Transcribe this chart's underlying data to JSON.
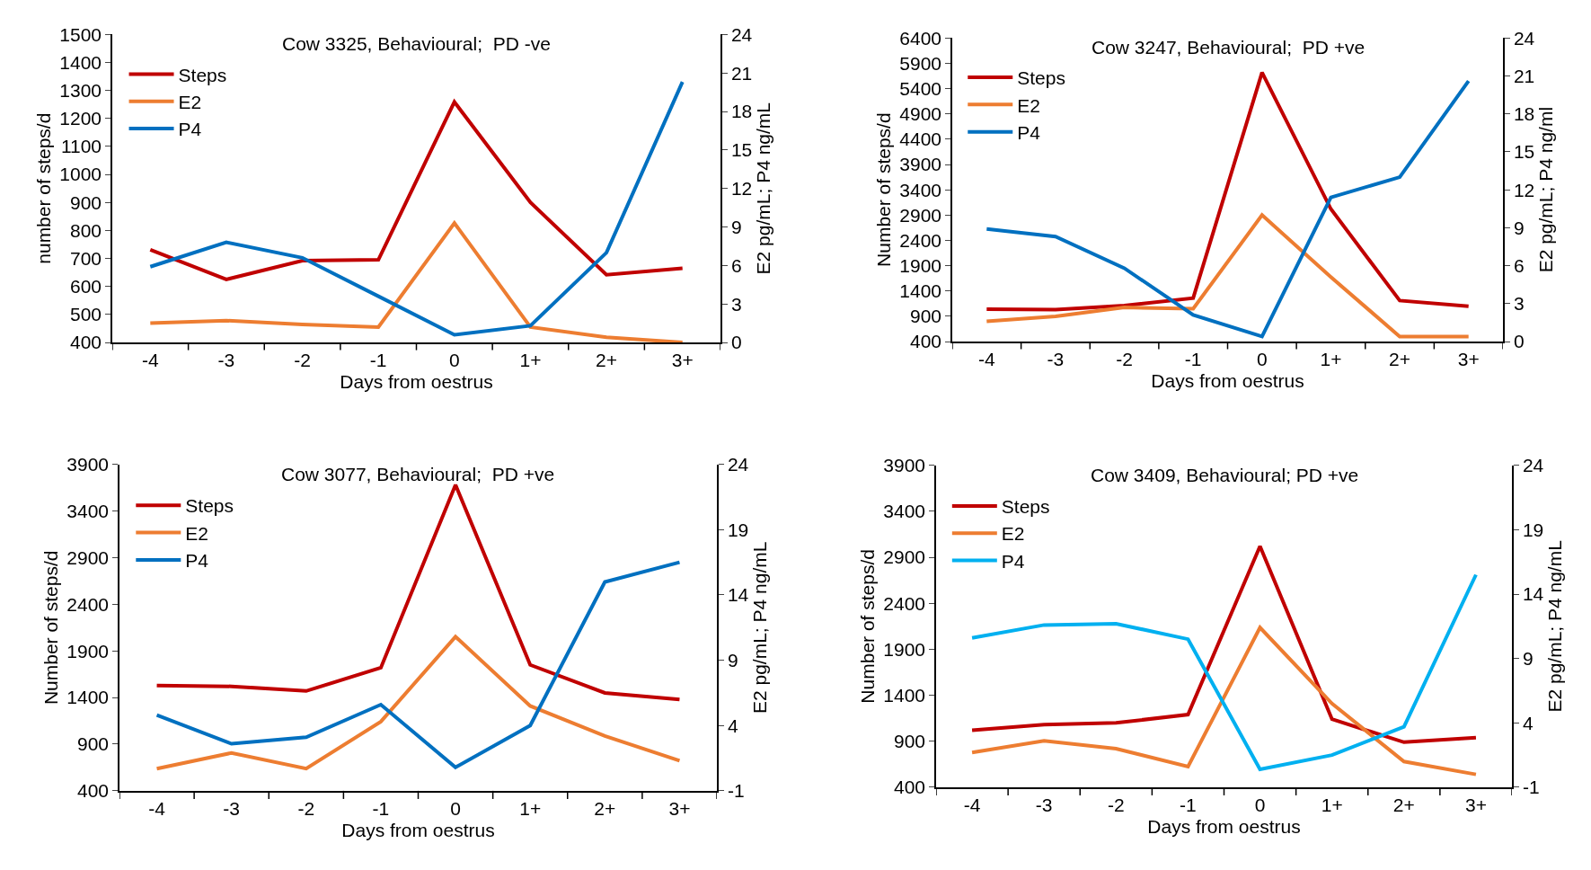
{
  "chart_data": [
    {
      "type": "line",
      "title": "Cow 3325, Behavioural;  PD -ve",
      "xlabel": "Days from oestrus",
      "ylabel": "number of steps/d",
      "y2label": "E2 pg/mL; P4 ng/mL",
      "legend": "top left",
      "categories": [
        "-4",
        "-3",
        "-2",
        "-1",
        "0",
        "1+",
        "2+",
        "3+"
      ],
      "ylim": [
        400,
        1500
      ],
      "yticks": [
        400,
        500,
        600,
        700,
        800,
        900,
        1000,
        1100,
        1200,
        1300,
        1400,
        1500
      ],
      "y2lim": [
        0,
        24
      ],
      "y2ticks": [
        0,
        3,
        6,
        9,
        12,
        15,
        18,
        21,
        24
      ],
      "series": [
        {
          "name": "Steps",
          "color": "#c00000",
          "values": [
            731,
            625,
            692,
            695,
            1259,
            900,
            642,
            665
          ]
        },
        {
          "name": "E2",
          "color": "#ed7d31",
          "axis": "y2",
          "values": [
            1.5,
            1.7,
            1.4,
            1.2,
            9.3,
            1.2,
            0.4,
            0
          ]
        },
        {
          "name": "P4",
          "color": "#0070c0",
          "axis": "y2",
          "values": [
            5.9,
            7.8,
            6.6,
            3.6,
            0.6,
            1.3,
            7.0,
            20.3
          ]
        }
      ]
    },
    {
      "type": "line",
      "title": "Cow 3247, Behavioural;  PD +ve",
      "xlabel": "Days from oestrus",
      "ylabel": "Number of steps/d",
      "y2label": "E2 pg/mL; P4 ng/ml",
      "legend": "top left",
      "categories": [
        "-4",
        "-3",
        "-2",
        "-1",
        "0",
        "1+",
        "2+",
        "3+"
      ],
      "ylim": [
        400,
        6400
      ],
      "yticks": [
        400,
        900,
        1400,
        1900,
        2400,
        2900,
        3400,
        3900,
        4400,
        4900,
        5400,
        5900,
        6400
      ],
      "y2lim": [
        0,
        24
      ],
      "y2ticks": [
        0,
        3,
        6,
        9,
        12,
        15,
        18,
        21,
        24
      ],
      "series": [
        {
          "name": "Steps",
          "color": "#c00000",
          "values": [
            1040,
            1030,
            1110,
            1260,
            5720,
            3020,
            1210,
            1100
          ]
        },
        {
          "name": "E2",
          "color": "#ed7d31",
          "axis": "y2",
          "values": [
            1.6,
            2.0,
            2.7,
            2.6,
            10.0,
            5.1,
            0.4,
            0.4
          ]
        },
        {
          "name": "P4",
          "color": "#0070c0",
          "axis": "y2",
          "values": [
            8.9,
            8.3,
            5.8,
            2.1,
            0.4,
            11.4,
            13.0,
            20.6
          ]
        }
      ]
    },
    {
      "type": "line",
      "title": "Cow 3077, Behavioural;  PD +ve",
      "xlabel": "Days from oestrus",
      "ylabel": "Number of steps/d",
      "y2label": "E2 pg/mL; P4 ng/mL",
      "legend": "top left",
      "categories": [
        "-4",
        "-3",
        "-2",
        "-1",
        "0",
        "1+",
        "2+",
        "3+"
      ],
      "ylim": [
        400,
        3900
      ],
      "yticks": [
        400,
        900,
        1400,
        1900,
        2400,
        2900,
        3400,
        3900
      ],
      "y2lim": [
        -1,
        24
      ],
      "y2ticks": [
        -1,
        4,
        9,
        14,
        19,
        24
      ],
      "series": [
        {
          "name": "Steps",
          "color": "#c00000",
          "values": [
            1530,
            1520,
            1470,
            1720,
            3680,
            1750,
            1450,
            1380
          ]
        },
        {
          "name": "E2",
          "color": "#ed7d31",
          "axis": "y2",
          "values": [
            0.7,
            1.9,
            0.7,
            4.3,
            10.8,
            5.5,
            3.2,
            1.3
          ]
        },
        {
          "name": "P4",
          "color": "#0070c0",
          "axis": "y2",
          "values": [
            4.8,
            2.6,
            3.1,
            5.6,
            0.8,
            4.0,
            15.0,
            16.5
          ]
        }
      ]
    },
    {
      "type": "line",
      "title": "Cow 3409, Behavioural; PD +ve",
      "xlabel": "Days from oestrus",
      "ylabel": "Number of steps/d",
      "y2label": "E2 pg/mL; P4 ng/mL",
      "legend": "top left",
      "categories": [
        "-4",
        "-3",
        "-2",
        "-1",
        "0",
        "1+",
        "2+",
        "3+"
      ],
      "ylim": [
        400,
        3900
      ],
      "yticks": [
        400,
        900,
        1400,
        1900,
        2400,
        2900,
        3400,
        3900
      ],
      "y2lim": [
        -1,
        24
      ],
      "y2ticks": [
        -1,
        4,
        9,
        14,
        19,
        24
      ],
      "series": [
        {
          "name": "Steps",
          "color": "#c00000",
          "values": [
            1020,
            1080,
            1100,
            1190,
            3020,
            1140,
            890,
            940
          ]
        },
        {
          "name": "E2",
          "color": "#ed7d31",
          "axis": "y2",
          "values": [
            1.7,
            2.6,
            2.0,
            0.6,
            11.4,
            5.5,
            1.0,
            0.0
          ]
        },
        {
          "name": "P4",
          "color": "#00b0f0",
          "axis": "y2",
          "values": [
            10.6,
            11.6,
            11.7,
            10.5,
            0.4,
            1.5,
            3.7,
            15.5
          ]
        }
      ]
    }
  ]
}
